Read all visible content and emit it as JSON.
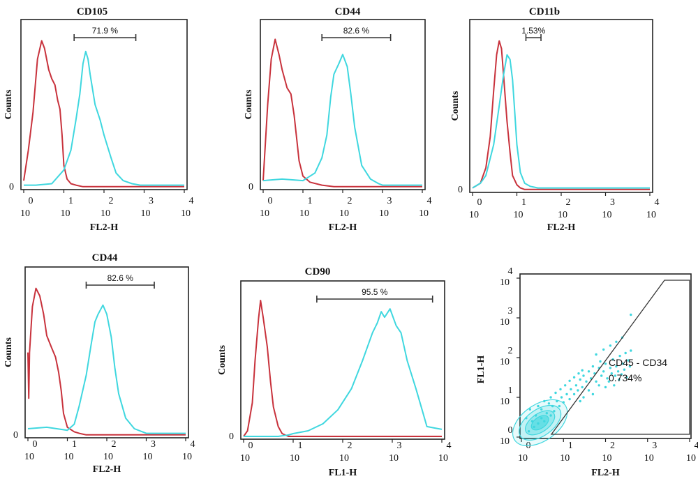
{
  "chart_data": [
    {
      "type": "line",
      "title": "CD105",
      "xlabel": "FL2-H",
      "ylabel": "Counts",
      "x_scale": "log",
      "xlim": [
        1,
        10000
      ],
      "y_tick": "0",
      "x_ticks": [
        {
          "base": "10",
          "exp": "0"
        },
        {
          "base": "10",
          "exp": "1"
        },
        {
          "base": "10",
          "exp": "2"
        },
        {
          "base": "10",
          "exp": "3"
        },
        {
          "base": "10",
          "exp": "4"
        }
      ],
      "gate": {
        "label": "71.9 %",
        "from": 18,
        "to": 620
      },
      "series": [
        {
          "color": "#c8323c",
          "x": [
            1,
            1.3,
            1.7,
            2.2,
            2.8,
            3.3,
            4.2,
            5,
            6,
            7,
            8,
            9,
            10,
            12,
            15,
            20,
            30,
            60,
            100,
            300,
            1000,
            10000
          ],
          "y": [
            0.05,
            0.25,
            0.5,
            0.85,
            0.97,
            0.92,
            0.78,
            0.72,
            0.68,
            0.58,
            0.52,
            0.35,
            0.15,
            0.06,
            0.03,
            0.02,
            0.01,
            0.01,
            0.01,
            0.01,
            0.01,
            0.01
          ]
        },
        {
          "color": "#3fd7df",
          "x": [
            1,
            2,
            5,
            10,
            15,
            20,
            25,
            30,
            35,
            40,
            45,
            60,
            80,
            100,
            150,
            200,
            300,
            500,
            800,
            1000,
            3000,
            10000
          ],
          "y": [
            0.02,
            0.02,
            0.03,
            0.12,
            0.25,
            0.45,
            0.62,
            0.82,
            0.9,
            0.85,
            0.75,
            0.55,
            0.45,
            0.35,
            0.2,
            0.1,
            0.05,
            0.03,
            0.02,
            0.02,
            0.02,
            0.02
          ]
        }
      ]
    },
    {
      "type": "line",
      "title": "CD44",
      "xlabel": "FL2-H",
      "ylabel": "Counts",
      "x_scale": "log",
      "xlim": [
        1,
        10000
      ],
      "y_tick": "0",
      "x_ticks": [
        {
          "base": "10",
          "exp": "0"
        },
        {
          "base": "10",
          "exp": "1"
        },
        {
          "base": "10",
          "exp": "2"
        },
        {
          "base": "10",
          "exp": "3"
        },
        {
          "base": "10",
          "exp": "4"
        }
      ],
      "gate": {
        "label": "82.6 %",
        "from": 30,
        "to": 1600
      },
      "series": [
        {
          "color": "#c8323c",
          "x": [
            1,
            1.3,
            1.6,
            2,
            2.5,
            3,
            4,
            5,
            6,
            7,
            8,
            10,
            15,
            30,
            60,
            100,
            1000,
            10000
          ],
          "y": [
            0.05,
            0.55,
            0.85,
            0.98,
            0.88,
            0.78,
            0.66,
            0.62,
            0.48,
            0.32,
            0.18,
            0.08,
            0.04,
            0.02,
            0.01,
            0.01,
            0.01,
            0.01
          ]
        },
        {
          "color": "#3fd7df",
          "x": [
            1,
            3,
            10,
            20,
            30,
            40,
            50,
            60,
            80,
            100,
            130,
            160,
            200,
            300,
            500,
            800,
            1000,
            3000,
            10000
          ],
          "y": [
            0.05,
            0.06,
            0.05,
            0.1,
            0.2,
            0.35,
            0.6,
            0.75,
            0.82,
            0.88,
            0.8,
            0.62,
            0.4,
            0.15,
            0.06,
            0.03,
            0.02,
            0.02,
            0.02
          ]
        }
      ]
    },
    {
      "type": "line",
      "title": "CD11b",
      "xlabel": "FL2-H",
      "ylabel": "Counts",
      "x_scale": "log",
      "xlim": [
        1,
        10000
      ],
      "y_tick": "0",
      "x_ticks": [
        {
          "base": "10",
          "exp": "0"
        },
        {
          "base": "10",
          "exp": "1"
        },
        {
          "base": "10",
          "exp": "2"
        },
        {
          "base": "10",
          "exp": "3"
        },
        {
          "base": "10",
          "exp": "4"
        }
      ],
      "gate": {
        "label": "1.53%",
        "from": 16,
        "to": 35
      },
      "series": [
        {
          "color": "#c8323c",
          "x": [
            1,
            1.5,
            2,
            2.5,
            3,
            3.5,
            4,
            4.5,
            5,
            6,
            7,
            8,
            10,
            12,
            15,
            20,
            30,
            10000
          ],
          "y": [
            0.02,
            0.05,
            0.15,
            0.35,
            0.65,
            0.88,
            0.97,
            0.92,
            0.75,
            0.45,
            0.25,
            0.1,
            0.04,
            0.02,
            0.01,
            0.01,
            0.01,
            0.01
          ]
        },
        {
          "color": "#3fd7df",
          "x": [
            1,
            1.5,
            2,
            3,
            4,
            5,
            6,
            7,
            8,
            9,
            10,
            12,
            15,
            20,
            30,
            60,
            10000
          ],
          "y": [
            0.02,
            0.05,
            0.1,
            0.3,
            0.55,
            0.75,
            0.88,
            0.85,
            0.72,
            0.5,
            0.3,
            0.12,
            0.05,
            0.03,
            0.02,
            0.02,
            0.02
          ]
        }
      ]
    },
    {
      "type": "line",
      "title": "CD44",
      "xlabel": "FL2-H",
      "ylabel": "Counts",
      "x_scale": "log",
      "xlim": [
        1,
        10000
      ],
      "y_tick": "0",
      "x_ticks": [
        {
          "base": "10",
          "exp": "0"
        },
        {
          "base": "10",
          "exp": "1"
        },
        {
          "base": "10",
          "exp": "2"
        },
        {
          "base": "10",
          "exp": "3"
        },
        {
          "base": "10",
          "exp": "4"
        }
      ],
      "gate": {
        "label": "82.6 %",
        "from": 30,
        "to": 1600
      },
      "series": [
        {
          "color": "#c8323c",
          "x": [
            1,
            1.05,
            1.1,
            1.3,
            1.6,
            2,
            2.5,
            3,
            4,
            5,
            6,
            7,
            8,
            10,
            15,
            20,
            30,
            60,
            100,
            1000,
            10000
          ],
          "y": [
            0.55,
            0.25,
            0.55,
            0.85,
            0.97,
            0.92,
            0.8,
            0.66,
            0.58,
            0.52,
            0.42,
            0.3,
            0.15,
            0.06,
            0.03,
            0.02,
            0.01,
            0.01,
            0.01,
            0.01,
            0.01
          ]
        },
        {
          "color": "#3fd7df",
          "x": [
            1,
            3,
            10,
            15,
            20,
            30,
            40,
            50,
            60,
            80,
            100,
            130,
            160,
            200,
            300,
            500,
            800,
            1000,
            3000,
            10000
          ],
          "y": [
            0.05,
            0.06,
            0.04,
            0.08,
            0.2,
            0.4,
            0.6,
            0.75,
            0.8,
            0.86,
            0.8,
            0.65,
            0.45,
            0.28,
            0.12,
            0.05,
            0.03,
            0.02,
            0.02,
            0.02
          ]
        }
      ]
    },
    {
      "type": "line",
      "title": "CD90",
      "xlabel": "FL1-H",
      "ylabel": "Counts",
      "x_scale": "log",
      "xlim": [
        1,
        10000
      ],
      "y_tick": "0",
      "x_ticks": [
        {
          "base": "10",
          "exp": "0"
        },
        {
          "base": "10",
          "exp": "1"
        },
        {
          "base": "10",
          "exp": "2"
        },
        {
          "base": "10",
          "exp": "3"
        },
        {
          "base": "10",
          "exp": "4"
        }
      ],
      "gate": {
        "label": "95.5 %",
        "from": 30,
        "to": 6500
      },
      "series": [
        {
          "color": "#c8323c",
          "x": [
            1,
            1.2,
            1.5,
            1.7,
            2,
            2.2,
            2.5,
            3,
            3.5,
            4,
            5,
            6,
            8,
            10,
            15,
            100,
            10000
          ],
          "y": [
            0.01,
            0.05,
            0.25,
            0.55,
            0.85,
            0.98,
            0.85,
            0.65,
            0.4,
            0.22,
            0.08,
            0.03,
            0.01,
            0.01,
            0.01,
            0.01,
            0.01
          ]
        },
        {
          "color": "#3fd7df",
          "x": [
            1,
            5,
            8,
            10,
            20,
            40,
            80,
            150,
            250,
            400,
            500,
            600,
            700,
            900,
            1200,
            1500,
            2000,
            3000,
            4000,
            5000,
            7000,
            10000
          ],
          "y": [
            0.01,
            0.01,
            0.02,
            0.03,
            0.05,
            0.1,
            0.2,
            0.35,
            0.55,
            0.75,
            0.82,
            0.9,
            0.86,
            0.92,
            0.8,
            0.75,
            0.55,
            0.35,
            0.2,
            0.08,
            0.07,
            0.06
          ]
        }
      ]
    },
    {
      "type": "scatter",
      "xlabel": "FL2-H",
      "ylabel": "FL1-H",
      "x_scale": "log",
      "y_scale": "log",
      "xlim": [
        1,
        10000
      ],
      "ylim": [
        1,
        10000
      ],
      "x_ticks": [
        {
          "base": "10",
          "exp": "0"
        },
        {
          "base": "10",
          "exp": "1"
        },
        {
          "base": "10",
          "exp": "2"
        },
        {
          "base": "10",
          "exp": "3"
        },
        {
          "base": "10",
          "exp": "4"
        }
      ],
      "y_ticks": [
        {
          "base": "10",
          "exp": "0"
        },
        {
          "base": "10",
          "exp": "1"
        },
        {
          "base": "10",
          "exp": "2"
        },
        {
          "base": "10",
          "exp": "3"
        },
        {
          "base": "10",
          "exp": "4"
        }
      ],
      "region_label": "CD45 - CD34",
      "region_value": "0.734%",
      "color": "#3fd7df",
      "points": [
        {
          "x": 1.5,
          "y": 1.4
        },
        {
          "x": 2,
          "y": 1.8
        },
        {
          "x": 1.8,
          "y": 2.5
        },
        {
          "x": 2.5,
          "y": 2.2
        },
        {
          "x": 3,
          "y": 3
        },
        {
          "x": 2.2,
          "y": 3.5
        },
        {
          "x": 3.5,
          "y": 2.5
        },
        {
          "x": 4,
          "y": 4
        },
        {
          "x": 3,
          "y": 5
        },
        {
          "x": 5,
          "y": 3.5
        },
        {
          "x": 5.5,
          "y": 6
        },
        {
          "x": 6,
          "y": 4.5
        },
        {
          "x": 4.5,
          "y": 7
        },
        {
          "x": 7,
          "y": 8
        },
        {
          "x": 8,
          "y": 6
        },
        {
          "x": 9,
          "y": 10
        },
        {
          "x": 10,
          "y": 7.5
        },
        {
          "x": 12,
          "y": 12
        },
        {
          "x": 14,
          "y": 9
        },
        {
          "x": 15,
          "y": 16
        },
        {
          "x": 18,
          "y": 12
        },
        {
          "x": 20,
          "y": 20
        },
        {
          "x": 22,
          "y": 15
        },
        {
          "x": 25,
          "y": 28
        },
        {
          "x": 28,
          "y": 18
        },
        {
          "x": 30,
          "y": 35
        },
        {
          "x": 35,
          "y": 25
        },
        {
          "x": 40,
          "y": 45
        },
        {
          "x": 45,
          "y": 30
        },
        {
          "x": 50,
          "y": 60
        },
        {
          "x": 55,
          "y": 40
        },
        {
          "x": 60,
          "y": 25
        },
        {
          "x": 70,
          "y": 55
        },
        {
          "x": 75,
          "y": 80
        },
        {
          "x": 80,
          "y": 35
        },
        {
          "x": 90,
          "y": 45
        },
        {
          "x": 100,
          "y": 70
        },
        {
          "x": 110,
          "y": 30
        },
        {
          "x": 120,
          "y": 25
        },
        {
          "x": 130,
          "y": 55
        },
        {
          "x": 140,
          "y": 40
        },
        {
          "x": 150,
          "y": 90
        },
        {
          "x": 160,
          "y": 20
        },
        {
          "x": 170,
          "y": 35
        },
        {
          "x": 180,
          "y": 60
        },
        {
          "x": 200,
          "y": 45
        },
        {
          "x": 210,
          "y": 28
        },
        {
          "x": 220,
          "y": 110
        },
        {
          "x": 240,
          "y": 38
        },
        {
          "x": 260,
          "y": 70
        },
        {
          "x": 280,
          "y": 50
        },
        {
          "x": 300,
          "y": 130
        },
        {
          "x": 320,
          "y": 32
        },
        {
          "x": 350,
          "y": 85
        },
        {
          "x": 380,
          "y": 60
        },
        {
          "x": 400,
          "y": 150
        },
        {
          "x": 60,
          "y": 120
        },
        {
          "x": 90,
          "y": 160
        },
        {
          "x": 130,
          "y": 200
        },
        {
          "x": 180,
          "y": 250
        },
        {
          "x": 250,
          "y": 320
        },
        {
          "x": 400,
          "y": 1200
        },
        {
          "x": 40,
          "y": 15
        },
        {
          "x": 70,
          "y": 20
        },
        {
          "x": 100,
          "y": 18
        },
        {
          "x": 50,
          "y": 12
        },
        {
          "x": 30,
          "y": 10
        },
        {
          "x": 25,
          "y": 8
        },
        {
          "x": 1.3,
          "y": 3
        },
        {
          "x": 1.6,
          "y": 5
        },
        {
          "x": 2.5,
          "y": 6
        },
        {
          "x": 3.5,
          "y": 8
        },
        {
          "x": 5,
          "y": 10
        },
        {
          "x": 6.5,
          "y": 13
        },
        {
          "x": 8.5,
          "y": 16
        },
        {
          "x": 11,
          "y": 20
        },
        {
          "x": 14,
          "y": 26
        },
        {
          "x": 18,
          "y": 32
        },
        {
          "x": 23,
          "y": 40
        },
        {
          "x": 28,
          "y": 48
        }
      ]
    }
  ]
}
